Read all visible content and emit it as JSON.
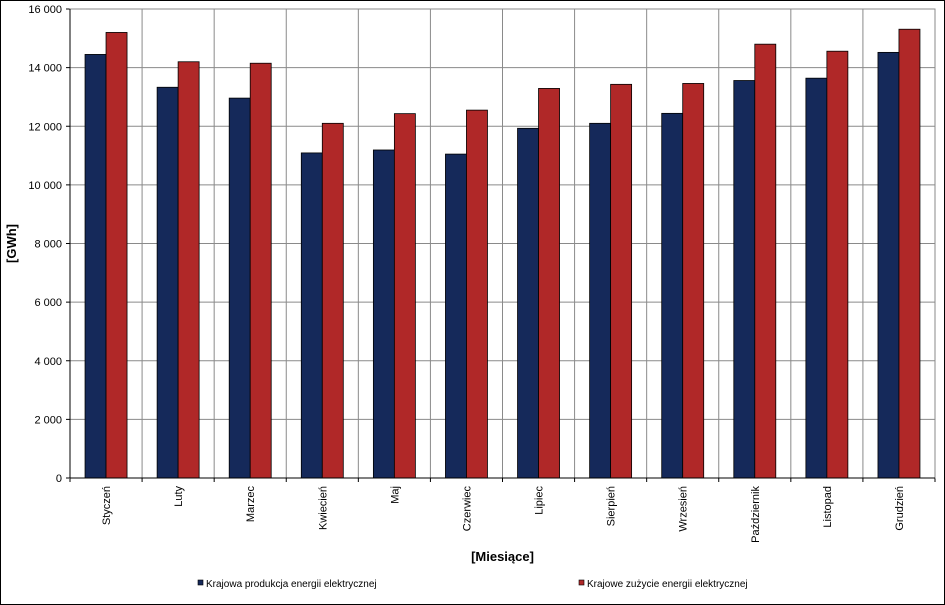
{
  "chart_data": {
    "type": "bar",
    "title": "",
    "xlabel": "[Miesiące]",
    "ylabel": "[GWh]",
    "ylim": [
      0,
      16000
    ],
    "yticks": [
      0,
      2000,
      4000,
      6000,
      8000,
      10000,
      12000,
      14000,
      16000
    ],
    "ytick_labels": [
      "0",
      "2 000",
      "4 000",
      "6 000",
      "8 000",
      "10 000",
      "12 000",
      "14 000",
      "16 000"
    ],
    "categories": [
      "Styczeń",
      "Luty",
      "Marzec",
      "Kwiecień",
      "Maj",
      "Czerwiec",
      "Lipiec",
      "Sierpień",
      "Wrzesień",
      "Październik",
      "Listopad",
      "Grudzień"
    ],
    "series": [
      {
        "name": "Krajowa produkcja energii elektrycznej",
        "color": "#15295a",
        "values": [
          14450,
          13330,
          12960,
          11090,
          11190,
          11050,
          11930,
          12100,
          12440,
          13560,
          13640,
          14520
        ]
      },
      {
        "name": "Krajowe zużycie energii elektrycznej",
        "color": "#b02828",
        "values": [
          15200,
          14200,
          14150,
          12100,
          12430,
          12550,
          13290,
          13430,
          13460,
          14800,
          14560,
          15310
        ]
      }
    ],
    "grid": true,
    "legend_position": "bottom"
  }
}
